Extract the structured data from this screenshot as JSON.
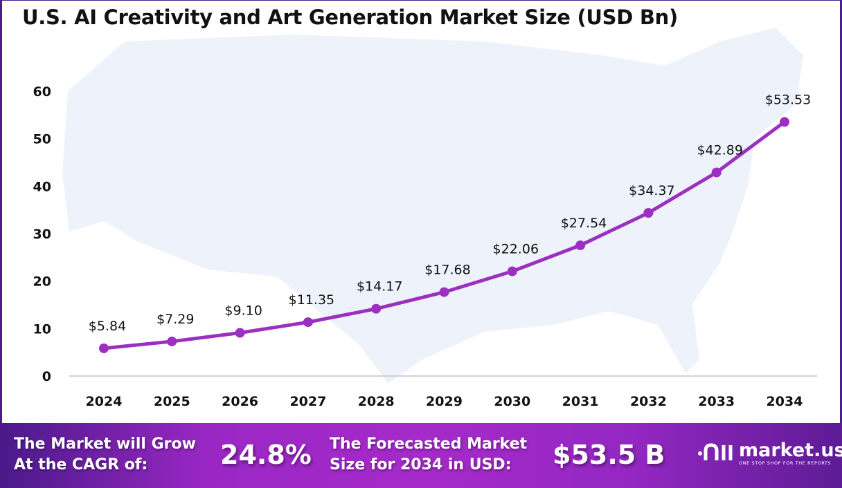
{
  "chart_data": {
    "type": "line",
    "title": "U.S. AI Creativity and Art Generation Market Size (USD Bn)",
    "x": [
      "2024",
      "2025",
      "2026",
      "2027",
      "2028",
      "2029",
      "2030",
      "2031",
      "2032",
      "2033",
      "2034"
    ],
    "values": [
      5.84,
      7.29,
      9.1,
      11.35,
      14.17,
      17.68,
      22.06,
      27.54,
      34.37,
      42.89,
      53.53
    ],
    "data_labels": [
      "$5.84",
      "$7.29",
      "$9.10",
      "$11.35",
      "$14.17",
      "$17.68",
      "$22.06",
      "$27.54",
      "$34.37",
      "$42.89",
      "$53.53"
    ],
    "yticks": [
      "0",
      "10",
      "20",
      "30",
      "40",
      "50",
      "60"
    ],
    "ylim": [
      0,
      60
    ],
    "grid": false,
    "line_color": "#9b2fc0",
    "background": "US map silhouette"
  },
  "banner": {
    "cagr_label_1": "The Market will Grow",
    "cagr_label_2": "At the CAGR of:",
    "cagr_value": "24.8%",
    "forecast_label_1": "The Forecasted Market",
    "forecast_label_2": "Size for 2034 in USD:",
    "forecast_value": "$53.5 B",
    "logo_name": "market.us",
    "logo_tagline": "ONE STOP SHOP FOR THE REPORTS"
  }
}
